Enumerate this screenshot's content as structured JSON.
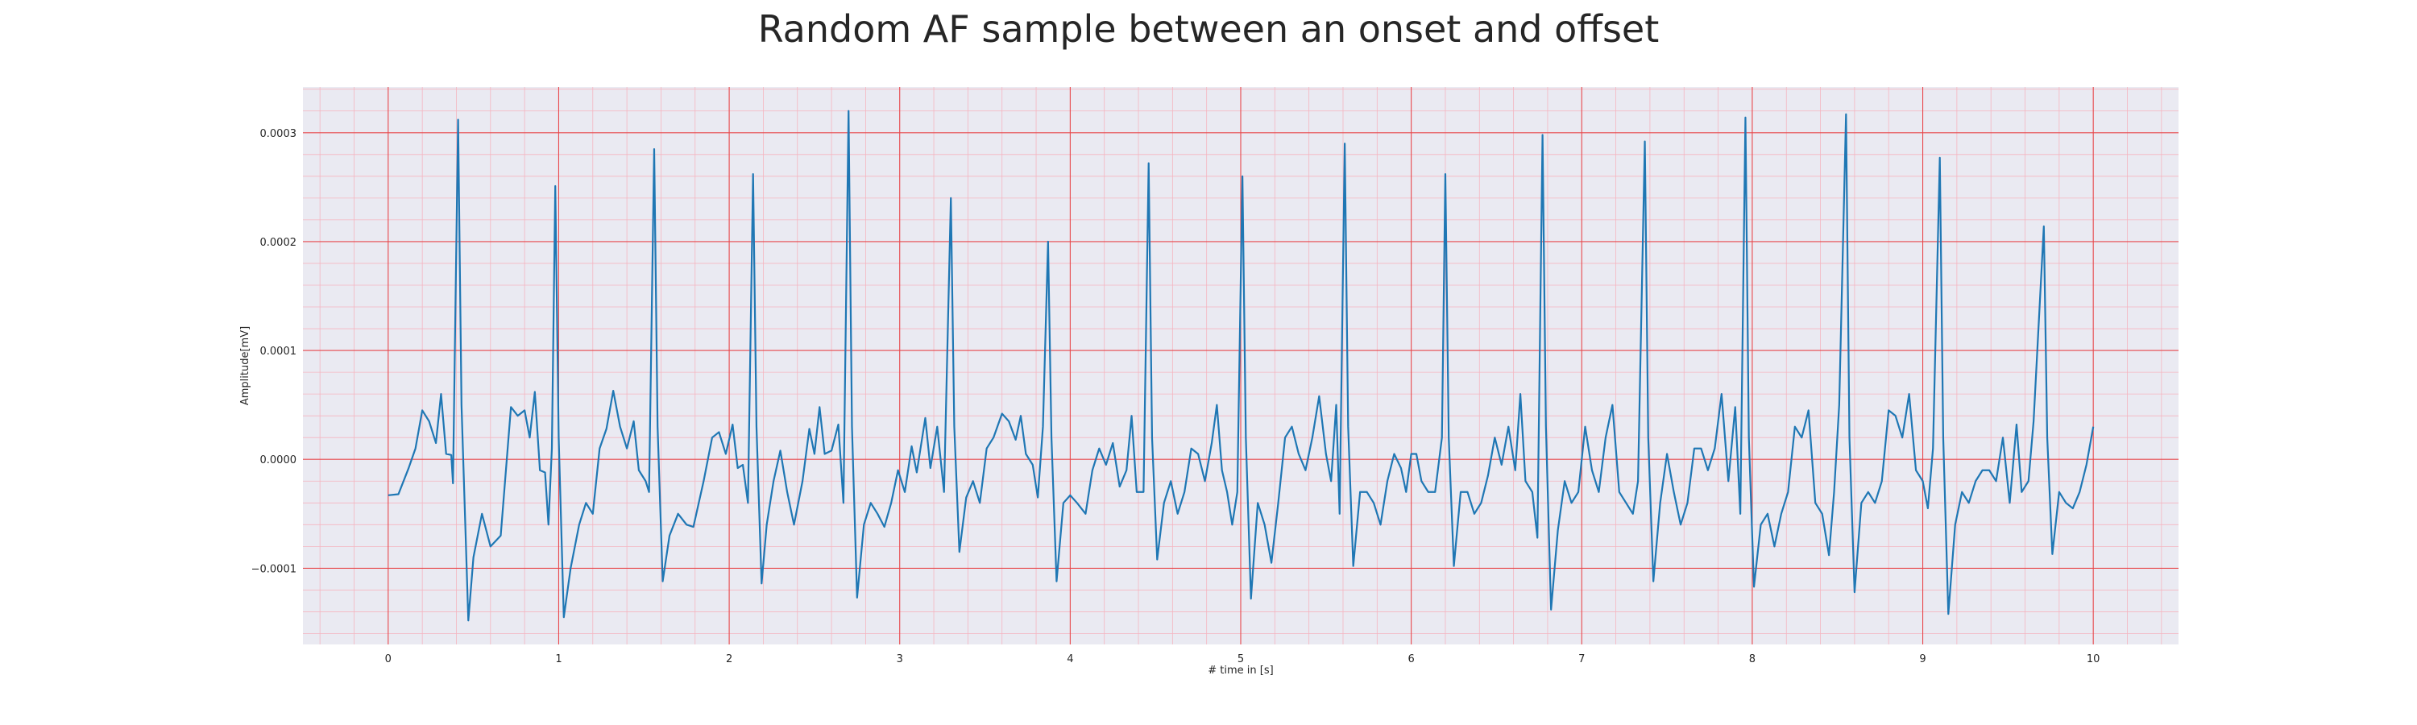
{
  "chart_data": {
    "type": "line",
    "title": "Random AF sample between an onset and offset",
    "xlabel": "# time in [s]",
    "ylabel": "Amplitude[mV]",
    "xlim": [
      -0.5,
      10.5
    ],
    "ylim": [
      -0.00017,
      0.000342
    ],
    "xticks": [
      "0",
      "1",
      "2",
      "3",
      "4",
      "5",
      "6",
      "7",
      "8",
      "9",
      "10"
    ],
    "yticks": [
      "−0.0001",
      "0.0000",
      "0.0001",
      "0.0002",
      "0.0003"
    ],
    "ytick_values": [
      -0.0001,
      0.0,
      0.0001,
      0.0002,
      0.0003
    ],
    "grid": true,
    "minor_grid": true,
    "colors": {
      "background": "#eaeaf2",
      "major_grid": "#e8474b",
      "minor_grid": "#f5b5c0",
      "line": "#1f77b4",
      "text": "#262626"
    },
    "series": [
      {
        "values": [
          [
            0.0,
            -3.3e-05
          ],
          [
            0.06,
            -3.2e-05
          ],
          [
            0.12,
            -8e-06
          ],
          [
            0.16,
            1e-05
          ],
          [
            0.2,
            4.5e-05
          ],
          [
            0.24,
            3.5e-05
          ],
          [
            0.28,
            1.5e-05
          ],
          [
            0.31,
            6e-05
          ],
          [
            0.34,
            5e-06
          ],
          [
            0.37,
            4e-06
          ],
          [
            0.38,
            -2.2e-05
          ],
          [
            0.41,
            0.000312
          ],
          [
            0.43,
            5e-05
          ],
          [
            0.47,
            -0.000148
          ],
          [
            0.5,
            -9e-05
          ],
          [
            0.55,
            -5e-05
          ],
          [
            0.6,
            -8e-05
          ],
          [
            0.66,
            -7e-05
          ],
          [
            0.72,
            4.8e-05
          ],
          [
            0.76,
            4e-05
          ],
          [
            0.8,
            4.5e-05
          ],
          [
            0.83,
            2e-05
          ],
          [
            0.86,
            6.2e-05
          ],
          [
            0.89,
            -1e-05
          ],
          [
            0.92,
            -1.2e-05
          ],
          [
            0.94,
            -6e-05
          ],
          [
            0.96,
            1e-05
          ],
          [
            0.98,
            0.000251
          ],
          [
            1.0,
            2e-05
          ],
          [
            1.03,
            -0.000145
          ],
          [
            1.07,
            -0.0001
          ],
          [
            1.12,
            -6e-05
          ],
          [
            1.16,
            -4e-05
          ],
          [
            1.2,
            -5e-05
          ],
          [
            1.24,
            1e-05
          ],
          [
            1.28,
            2.8e-05
          ],
          [
            1.32,
            6.3e-05
          ],
          [
            1.36,
            3e-05
          ],
          [
            1.4,
            1e-05
          ],
          [
            1.44,
            3.5e-05
          ],
          [
            1.47,
            -1e-05
          ],
          [
            1.51,
            -2e-05
          ],
          [
            1.53,
            -3e-05
          ],
          [
            1.56,
            0.000285
          ],
          [
            1.58,
            3e-05
          ],
          [
            1.61,
            -0.000112
          ],
          [
            1.65,
            -7e-05
          ],
          [
            1.7,
            -5e-05
          ],
          [
            1.75,
            -6e-05
          ],
          [
            1.79,
            -6.2e-05
          ],
          [
            1.85,
            -2e-05
          ],
          [
            1.9,
            2e-05
          ],
          [
            1.94,
            2.5e-05
          ],
          [
            1.98,
            5e-06
          ],
          [
            2.02,
            3.2e-05
          ],
          [
            2.05,
            -8e-06
          ],
          [
            2.08,
            -5e-06
          ],
          [
            2.11,
            -4e-05
          ],
          [
            2.14,
            0.000262
          ],
          [
            2.16,
            3e-05
          ],
          [
            2.19,
            -0.000114
          ],
          [
            2.22,
            -6e-05
          ],
          [
            2.26,
            -2e-05
          ],
          [
            2.3,
            8e-06
          ],
          [
            2.34,
            -3e-05
          ],
          [
            2.38,
            -6e-05
          ],
          [
            2.43,
            -2e-05
          ],
          [
            2.47,
            2.8e-05
          ],
          [
            2.5,
            5e-06
          ],
          [
            2.53,
            4.8e-05
          ],
          [
            2.56,
            5e-06
          ],
          [
            2.6,
            8e-06
          ],
          [
            2.64,
            3.2e-05
          ],
          [
            2.67,
            -4e-05
          ],
          [
            2.7,
            0.00032
          ],
          [
            2.72,
            3e-05
          ],
          [
            2.75,
            -0.000127
          ],
          [
            2.79,
            -6e-05
          ],
          [
            2.83,
            -4e-05
          ],
          [
            2.87,
            -5e-05
          ],
          [
            2.91,
            -6.2e-05
          ],
          [
            2.95,
            -4e-05
          ],
          [
            2.99,
            -1e-05
          ],
          [
            3.03,
            -3e-05
          ],
          [
            3.07,
            1.2e-05
          ],
          [
            3.1,
            -1.2e-05
          ],
          [
            3.15,
            3.8e-05
          ],
          [
            3.18,
            -8e-06
          ],
          [
            3.22,
            3e-05
          ],
          [
            3.26,
            -3e-05
          ],
          [
            3.3,
            0.00024
          ],
          [
            3.32,
            3e-05
          ],
          [
            3.35,
            -8.5e-05
          ],
          [
            3.39,
            -3.5e-05
          ],
          [
            3.43,
            -2e-05
          ],
          [
            3.47,
            -4e-05
          ],
          [
            3.51,
            1e-05
          ],
          [
            3.55,
            2e-05
          ],
          [
            3.6,
            4.2e-05
          ],
          [
            3.64,
            3.5e-05
          ],
          [
            3.68,
            1.8e-05
          ],
          [
            3.71,
            4e-05
          ],
          [
            3.74,
            5e-06
          ],
          [
            3.78,
            -5e-06
          ],
          [
            3.81,
            -3.5e-05
          ],
          [
            3.84,
            3e-05
          ],
          [
            3.87,
            0.0002
          ],
          [
            3.89,
            2e-05
          ],
          [
            3.92,
            -0.000112
          ],
          [
            3.96,
            -4e-05
          ],
          [
            4.0,
            -3.3e-05
          ],
          [
            4.04,
            -4e-05
          ],
          [
            4.09,
            -5e-05
          ],
          [
            4.13,
            -1e-05
          ],
          [
            4.17,
            1e-05
          ],
          [
            4.21,
            -5e-06
          ],
          [
            4.25,
            1.5e-05
          ],
          [
            4.29,
            -2.5e-05
          ],
          [
            4.33,
            -1e-05
          ],
          [
            4.36,
            4e-05
          ],
          [
            4.39,
            -3e-05
          ],
          [
            4.43,
            -3e-05
          ],
          [
            4.46,
            0.000272
          ],
          [
            4.48,
            2e-05
          ],
          [
            4.51,
            -9.2e-05
          ],
          [
            4.55,
            -4e-05
          ],
          [
            4.59,
            -2e-05
          ],
          [
            4.63,
            -5e-05
          ],
          [
            4.67,
            -3e-05
          ],
          [
            4.71,
            1e-05
          ],
          [
            4.75,
            5e-06
          ],
          [
            4.79,
            -2e-05
          ],
          [
            4.83,
            1.5e-05
          ],
          [
            4.86,
            5e-05
          ],
          [
            4.89,
            -1e-05
          ],
          [
            4.92,
            -3e-05
          ],
          [
            4.95,
            -6e-05
          ],
          [
            4.98,
            -3e-05
          ],
          [
            5.01,
            0.00026
          ],
          [
            5.03,
            2e-05
          ],
          [
            5.06,
            -0.000128
          ],
          [
            5.1,
            -4e-05
          ],
          [
            5.14,
            -6e-05
          ],
          [
            5.18,
            -9.5e-05
          ],
          [
            5.22,
            -4e-05
          ],
          [
            5.26,
            2e-05
          ],
          [
            5.3,
            3e-05
          ],
          [
            5.34,
            5e-06
          ],
          [
            5.38,
            -1e-05
          ],
          [
            5.42,
            2e-05
          ],
          [
            5.46,
            5.8e-05
          ],
          [
            5.5,
            5e-06
          ],
          [
            5.53,
            -2e-05
          ],
          [
            5.56,
            5e-05
          ],
          [
            5.58,
            -5e-05
          ],
          [
            5.61,
            0.00029
          ],
          [
            5.63,
            3e-05
          ],
          [
            5.66,
            -9.8e-05
          ],
          [
            5.7,
            -3e-05
          ],
          [
            5.74,
            -3e-05
          ],
          [
            5.78,
            -4e-05
          ],
          [
            5.82,
            -6e-05
          ],
          [
            5.86,
            -2e-05
          ],
          [
            5.9,
            5e-06
          ],
          [
            5.94,
            -8e-06
          ],
          [
            5.97,
            -3e-05
          ],
          [
            6.0,
            5e-06
          ],
          [
            6.03,
            5e-06
          ],
          [
            6.06,
            -2e-05
          ],
          [
            6.1,
            -3e-05
          ],
          [
            6.14,
            -3e-05
          ],
          [
            6.18,
            2e-05
          ],
          [
            6.2,
            0.000262
          ],
          [
            6.22,
            2e-05
          ],
          [
            6.25,
            -9.8e-05
          ],
          [
            6.29,
            -3e-05
          ],
          [
            6.33,
            -3e-05
          ],
          [
            6.37,
            -5e-05
          ],
          [
            6.41,
            -4e-05
          ],
          [
            6.45,
            -1.5e-05
          ],
          [
            6.49,
            2e-05
          ],
          [
            6.53,
            -5e-06
          ],
          [
            6.57,
            3e-05
          ],
          [
            6.61,
            -1e-05
          ],
          [
            6.64,
            6e-05
          ],
          [
            6.67,
            -2e-05
          ],
          [
            6.71,
            -3e-05
          ],
          [
            6.74,
            -7.2e-05
          ],
          [
            6.77,
            0.000298
          ],
          [
            6.79,
            3e-05
          ],
          [
            6.82,
            -0.000138
          ],
          [
            6.86,
            -6.5e-05
          ],
          [
            6.9,
            -2e-05
          ],
          [
            6.94,
            -4e-05
          ],
          [
            6.98,
            -3e-05
          ],
          [
            7.02,
            3e-05
          ],
          [
            7.06,
            -1e-05
          ],
          [
            7.1,
            -3e-05
          ],
          [
            7.14,
            2e-05
          ],
          [
            7.18,
            5e-05
          ],
          [
            7.22,
            -3e-05
          ],
          [
            7.26,
            -4e-05
          ],
          [
            7.3,
            -5e-05
          ],
          [
            7.33,
            -2e-05
          ],
          [
            7.37,
            0.000292
          ],
          [
            7.39,
            2e-05
          ],
          [
            7.42,
            -0.000112
          ],
          [
            7.46,
            -4e-05
          ],
          [
            7.5,
            5e-06
          ],
          [
            7.54,
            -3e-05
          ],
          [
            7.58,
            -6e-05
          ],
          [
            7.62,
            -4e-05
          ],
          [
            7.66,
            1e-05
          ],
          [
            7.7,
            1e-05
          ],
          [
            7.74,
            -1e-05
          ],
          [
            7.78,
            1e-05
          ],
          [
            7.82,
            6e-05
          ],
          [
            7.86,
            -2e-05
          ],
          [
            7.9,
            4.8e-05
          ],
          [
            7.93,
            -5e-05
          ],
          [
            7.96,
            0.000314
          ],
          [
            7.98,
            2e-05
          ],
          [
            8.01,
            -0.000117
          ],
          [
            8.05,
            -6e-05
          ],
          [
            8.09,
            -5e-05
          ],
          [
            8.13,
            -8e-05
          ],
          [
            8.17,
            -5e-05
          ],
          [
            8.21,
            -3e-05
          ],
          [
            8.25,
            3e-05
          ],
          [
            8.29,
            2e-05
          ],
          [
            8.33,
            4.5e-05
          ],
          [
            8.37,
            -4e-05
          ],
          [
            8.41,
            -5e-05
          ],
          [
            8.45,
            -8.8e-05
          ],
          [
            8.48,
            -3e-05
          ],
          [
            8.51,
            5e-05
          ],
          [
            8.55,
            0.000317
          ],
          [
            8.57,
            2e-05
          ],
          [
            8.6,
            -0.000122
          ],
          [
            8.64,
            -4e-05
          ],
          [
            8.68,
            -3e-05
          ],
          [
            8.72,
            -4e-05
          ],
          [
            8.76,
            -2e-05
          ],
          [
            8.8,
            4.5e-05
          ],
          [
            8.84,
            4e-05
          ],
          [
            8.88,
            2e-05
          ],
          [
            8.92,
            6e-05
          ],
          [
            8.96,
            -1e-05
          ],
          [
            9.0,
            -2e-05
          ],
          [
            9.03,
            -4.5e-05
          ],
          [
            9.06,
            1e-05
          ],
          [
            9.1,
            0.000277
          ],
          [
            9.12,
            2e-05
          ],
          [
            9.15,
            -0.000142
          ],
          [
            9.19,
            -6e-05
          ],
          [
            9.23,
            -3e-05
          ],
          [
            9.27,
            -4e-05
          ],
          [
            9.31,
            -2e-05
          ],
          [
            9.35,
            -1e-05
          ],
          [
            9.39,
            -1e-05
          ],
          [
            9.43,
            -2e-05
          ],
          [
            9.47,
            2e-05
          ],
          [
            9.51,
            -4e-05
          ],
          [
            9.55,
            3.2e-05
          ],
          [
            9.58,
            -3e-05
          ],
          [
            9.62,
            -2e-05
          ],
          [
            9.65,
            3.5e-05
          ],
          [
            9.71,
            0.000214
          ],
          [
            9.73,
            2e-05
          ],
          [
            9.76,
            -8.7e-05
          ],
          [
            9.8,
            -3e-05
          ],
          [
            9.84,
            -4e-05
          ],
          [
            9.88,
            -4.5e-05
          ],
          [
            9.92,
            -3e-05
          ],
          [
            9.96,
            -5e-06
          ],
          [
            10.0,
            3e-05
          ]
        ]
      }
    ]
  }
}
